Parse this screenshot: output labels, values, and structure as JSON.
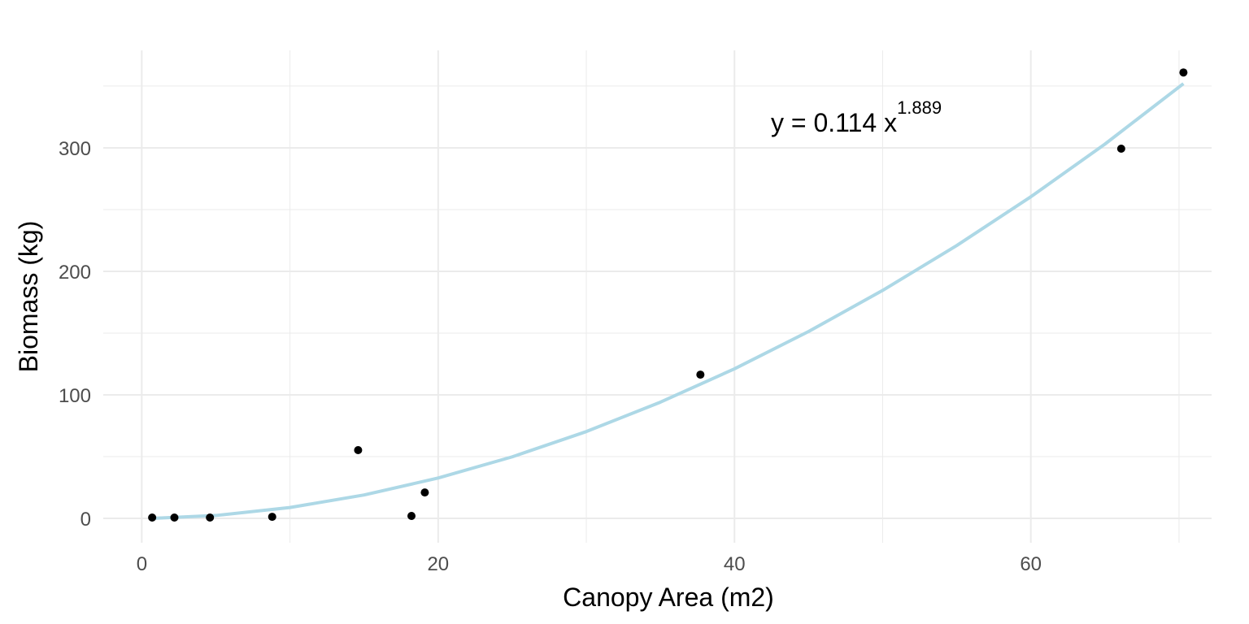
{
  "chart_data": {
    "type": "scatter",
    "x_label": "Canopy Area (m2)",
    "y_label": "Biomass (kg)",
    "annotation": {
      "text": "y = 0.114 x",
      "superscript": "1.889"
    },
    "xlim": [
      -2.6,
      72.2
    ],
    "ylim": [
      -19.7,
      378.9
    ],
    "xticks": [
      0,
      20,
      40,
      60
    ],
    "yticks": [
      0,
      100,
      200,
      300
    ],
    "x_minor_grid": [
      10,
      30,
      50,
      70
    ],
    "y_minor_grid": [
      50,
      150,
      250,
      350
    ],
    "grid": true,
    "series": [
      {
        "type": "scatter",
        "color": "#000000",
        "x": [
          0.7,
          2.2,
          4.6,
          8.8,
          14.6,
          18.2,
          19.1,
          37.7,
          66.1,
          70.3
        ],
        "values": [
          0.7,
          0.7,
          0.7,
          1.3,
          55.3,
          2,
          21,
          116.4,
          299.3,
          361
        ]
      },
      {
        "type": "line",
        "color": "#add8e6",
        "x": [
          0.71,
          5,
          10,
          15,
          20,
          25,
          30,
          35,
          40,
          45,
          50,
          55,
          60,
          65,
          70.3
        ],
        "values": [
          0.06,
          2.38,
          8.83,
          18.99,
          32.7,
          49.85,
          70.3,
          94.1,
          121.1,
          151.3,
          184.6,
          220.9,
          260.4,
          303.0,
          352
        ]
      }
    ]
  }
}
